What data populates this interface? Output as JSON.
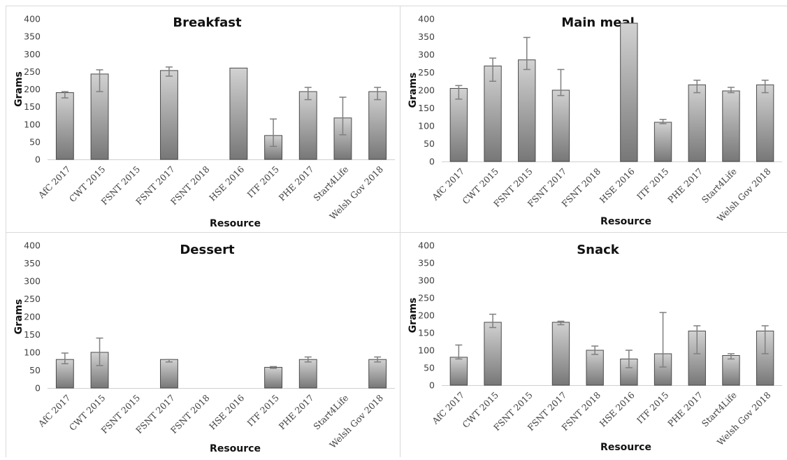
{
  "chart_data": [
    {
      "type": "bar",
      "title": "Breakfast",
      "xlabel": "Resource",
      "ylabel": "Grams",
      "ylim": [
        0,
        400
      ],
      "yticks": [
        0,
        50,
        100,
        150,
        200,
        250,
        300,
        350,
        400
      ],
      "categories": [
        "AfC 2017",
        "CWT 2015",
        "FSNT 2015",
        "FSNT 2017",
        "FSNT 2018",
        "HSE 2016",
        "ITF 2015",
        "PHE 2017",
        "Start4Life",
        "Welsh Gov 2018"
      ],
      "values": [
        190,
        243,
        null,
        253,
        null,
        260,
        68,
        193,
        118,
        193
      ],
      "error_low": [
        175,
        193,
        null,
        237,
        null,
        260,
        37,
        170,
        70,
        170
      ],
      "error_high": [
        193,
        255,
        null,
        263,
        null,
        260,
        115,
        205,
        177,
        205
      ]
    },
    {
      "type": "bar",
      "title": "Main meal",
      "xlabel": "Resource",
      "ylabel": "Grams",
      "ylim": [
        0,
        400
      ],
      "yticks": [
        0,
        50,
        100,
        150,
        200,
        250,
        300,
        350,
        400
      ],
      "categories": [
        "AfC 2017",
        "CWT 2015",
        "FSNT 2015",
        "FSNT 2017",
        "FSNT 2018",
        "HSE 2016",
        "ITF 2015",
        "PHE 2017",
        "Start4Life",
        "Welsh Gov 2018"
      ],
      "values": [
        205,
        268,
        285,
        200,
        null,
        388,
        110,
        215,
        198,
        215
      ],
      "error_low": [
        175,
        225,
        258,
        185,
        null,
        388,
        106,
        193,
        193,
        193
      ],
      "error_high": [
        213,
        290,
        348,
        258,
        null,
        388,
        118,
        228,
        208,
        228
      ]
    },
    {
      "type": "bar",
      "title": "Dessert",
      "xlabel": "Resource",
      "ylabel": "Grams",
      "ylim": [
        0,
        400
      ],
      "yticks": [
        0,
        50,
        100,
        150,
        200,
        250,
        300,
        350,
        400
      ],
      "categories": [
        "AfC 2017",
        "CWT 2015",
        "FSNT 2015",
        "FSNT 2017",
        "FSNT 2018",
        "HSE 2016",
        "ITF 2015",
        "PHE 2017",
        "Start4Life",
        "Welsh Gov 2018"
      ],
      "values": [
        80,
        100,
        null,
        80,
        null,
        null,
        58,
        80,
        null,
        80
      ],
      "error_low": [
        68,
        63,
        null,
        73,
        null,
        null,
        55,
        73,
        null,
        73
      ],
      "error_high": [
        98,
        140,
        null,
        80,
        null,
        null,
        60,
        87,
        null,
        87
      ]
    },
    {
      "type": "bar",
      "title": "Snack",
      "xlabel": "Resource",
      "ylabel": "Grams",
      "ylim": [
        0,
        400
      ],
      "yticks": [
        0,
        50,
        100,
        150,
        200,
        250,
        300,
        350,
        400
      ],
      "categories": [
        "AfC 2017",
        "CWT 2015",
        "FSNT 2015",
        "FSNT 2017",
        "FSNT 2018",
        "HSE 2016",
        "ITF 2015",
        "PHE 2017",
        "Start4Life",
        "Welsh Gov 2018"
      ],
      "values": [
        80,
        180,
        null,
        180,
        100,
        75,
        90,
        155,
        85,
        155
      ],
      "error_low": [
        75,
        165,
        null,
        173,
        88,
        50,
        52,
        90,
        75,
        90
      ],
      "error_high": [
        115,
        203,
        null,
        183,
        112,
        100,
        208,
        170,
        90,
        170
      ]
    }
  ],
  "style": {
    "bar_gradient_top": "#d2d2d2",
    "bar_gradient_bottom": "#777777",
    "bar_outline": "#4a4a4a",
    "error_bar": "#7f7f7f",
    "divider": "#d9d9d9"
  }
}
